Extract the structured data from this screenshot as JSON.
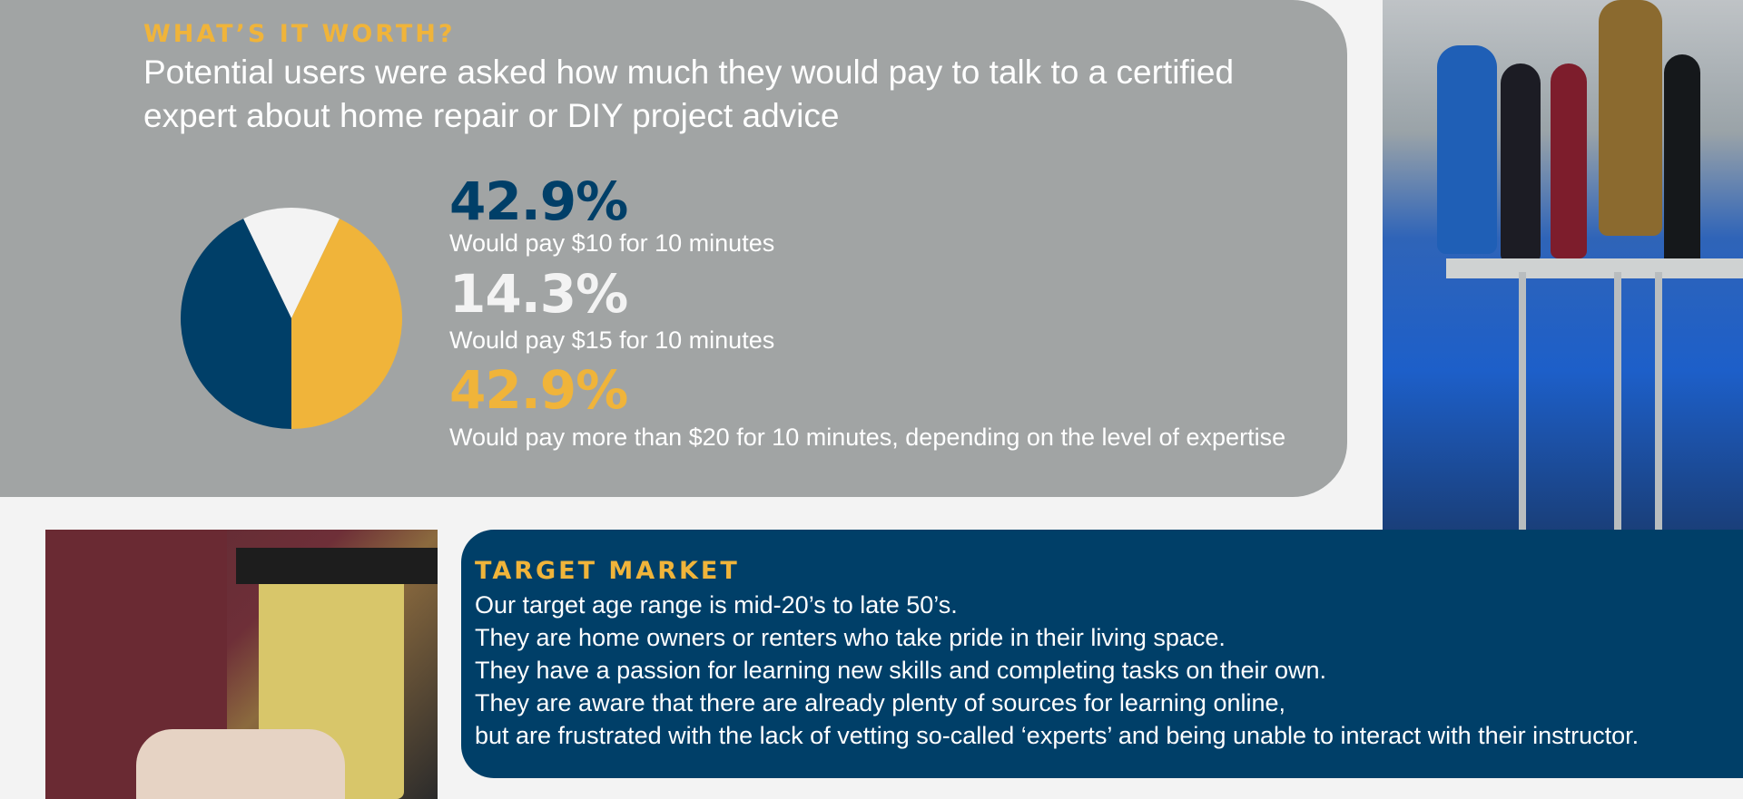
{
  "worth": {
    "kicker": "WHAT’S IT WORTH?",
    "question": "Potential users were asked how much they would pay to talk to a certified expert about home repair or DIY project advice"
  },
  "stats": [
    {
      "value": "42.9%",
      "description": "Would pay $10 for 10 minutes",
      "color": "#003f68"
    },
    {
      "value": "14.3%",
      "description": "Would pay $15 for 10 minutes",
      "color": "#f3f3f3"
    },
    {
      "value": "42.9%",
      "description": "Would pay more than $20 for 10 minutes, depending on the level of expertise",
      "color": "#f0b43a"
    }
  ],
  "chart_data": {
    "type": "pie",
    "categories": [
      "Would pay $10 for 10 minutes",
      "Would pay $15 for 10 minutes",
      "Would pay more than $20 for 10 minutes, depending on the level of expertise"
    ],
    "values": [
      42.9,
      14.3,
      42.9
    ],
    "colors": [
      "#003f68",
      "#f3f3f3",
      "#f0b43a"
    ],
    "order_clockwise_from_top": [
      "Would pay $15 for 10 minutes",
      "Would pay more than $20 for 10 minutes, depending on the level of expertise",
      "Would pay $10 for 10 minutes"
    ],
    "title": "",
    "legend": "right"
  },
  "market": {
    "kicker": "TARGET MARKET",
    "lines": [
      "Our target age range is mid-20’s to late 50’s.",
      "They are home owners or renters who take pride in their living space.",
      "They have a passion for learning new skills and completing tasks on their own.",
      "They are aware that there are already plenty of sources for learning online,",
      "but are frustrated with the lack of vetting so-called ‘experts’ and being unable to interact with their instructor."
    ]
  },
  "colors": {
    "accent": "#f0b43a",
    "navy": "#003f68",
    "panel_gray": "#a1a4a4",
    "background": "#f3f3f3"
  }
}
